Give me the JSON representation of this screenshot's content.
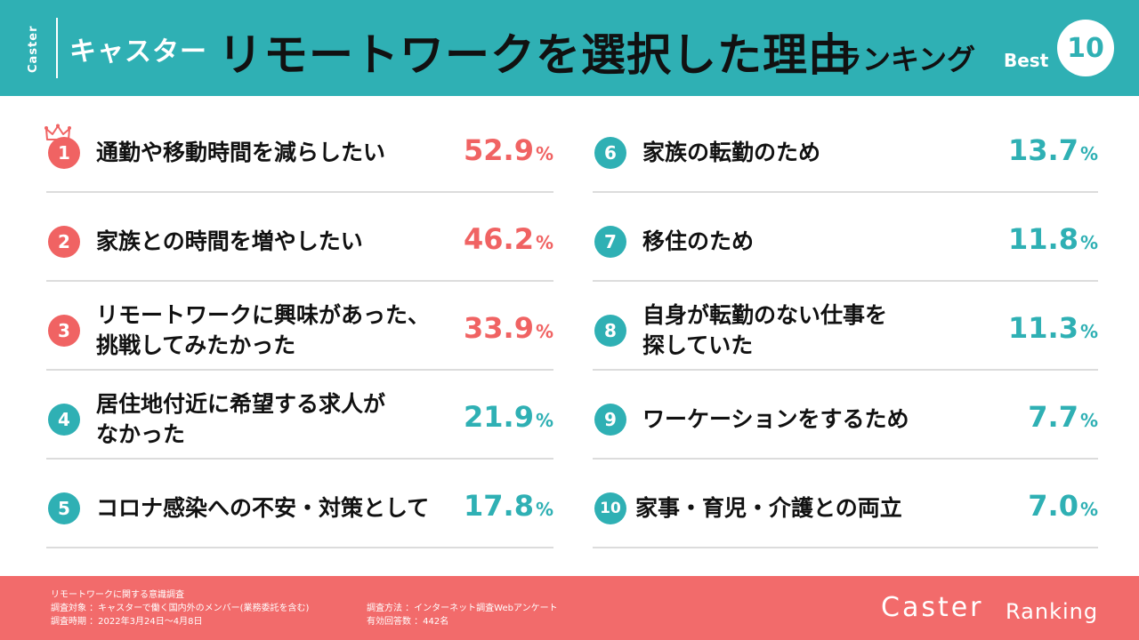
{
  "header": {
    "brand_vertical": "Caster",
    "brand_jp": "キャスター",
    "title_main": "リモートワークを選択した理由",
    "title_sub": "ランキング",
    "best_label": "Best",
    "best_number": "10"
  },
  "chart_data": {
    "type": "table",
    "unit": "%",
    "rows": [
      {
        "rank": "1",
        "label_lines": [
          "通勤や移動時間を減らしたい"
        ],
        "value": 52.9,
        "value_text": "52.9",
        "unit": "%",
        "color": "#f06363"
      },
      {
        "rank": "2",
        "label_lines": [
          "家族との時間を増やしたい"
        ],
        "value": 46.2,
        "value_text": "46.2",
        "unit": "%",
        "color": "#f06363"
      },
      {
        "rank": "3",
        "label_lines": [
          "リモートワークに興味があった、",
          "挑戦してみたかった"
        ],
        "value": 33.9,
        "value_text": "33.9",
        "unit": "%",
        "color": "#f06363"
      },
      {
        "rank": "4",
        "label_lines": [
          "居住地付近に希望する求人が",
          "なかった"
        ],
        "value": 21.9,
        "value_text": "21.9",
        "unit": "%",
        "color": "#2fb0b4"
      },
      {
        "rank": "5",
        "label_lines": [
          "コロナ感染への不安・対策として"
        ],
        "value": 17.8,
        "value_text": "17.8",
        "unit": "%",
        "color": "#2fb0b4"
      },
      {
        "rank": "6",
        "label_lines": [
          "家族の転勤のため"
        ],
        "value": 13.7,
        "value_text": "13.7",
        "unit": "%",
        "color": "#2fb0b4"
      },
      {
        "rank": "7",
        "label_lines": [
          "移住のため"
        ],
        "value": 11.8,
        "value_text": "11.8",
        "unit": "%",
        "color": "#2fb0b4"
      },
      {
        "rank": "8",
        "label_lines": [
          "自身が転勤のない仕事を",
          "探していた"
        ],
        "value": 11.3,
        "value_text": "11.3",
        "unit": "%",
        "color": "#2fb0b4"
      },
      {
        "rank": "9",
        "label_lines": [
          "ワーケーションをするため"
        ],
        "value": 7.7,
        "value_text": "7.7",
        "unit": "%",
        "color": "#2fb0b4"
      },
      {
        "rank": "10",
        "label_lines": [
          "家事・育児・介護との両立"
        ],
        "value": 7.0,
        "value_text": "7.0",
        "unit": "%",
        "color": "#2fb0b4"
      }
    ]
  },
  "footer": {
    "survey_title": "リモートワークに関する意識調査",
    "target": "調査対象 ：キャスターで働く国内外のメンバー(業務委託を含む)",
    "period": "調査時期 ：2022年3月24日〜4月8日",
    "method": "調査方法 ：インターネット調査Webアンケート",
    "responses": "有効回答数 ：442名",
    "logo": "Caster",
    "ranking_label": "Ranking"
  },
  "colors": {
    "teal": "#2fb0b4",
    "red": "#f06363",
    "footer_bg": "#f26b6b"
  },
  "icons": {
    "rank1_decoration": "crown-icon"
  }
}
